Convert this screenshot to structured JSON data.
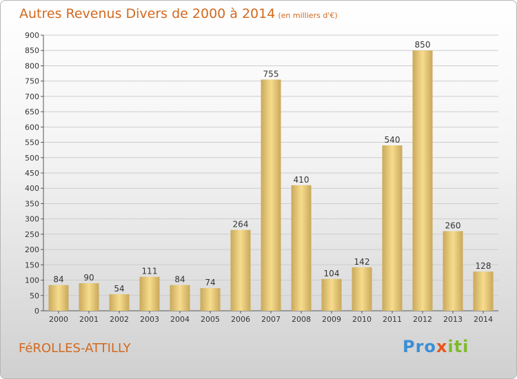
{
  "title": "Autres Revenus Divers de 2000 à 2014",
  "subtitle": "(en milliers d'€)",
  "location": "FéROLLES-ATTILLY",
  "logo": {
    "p1": "Pro",
    "p2": "x",
    "p3": "iti"
  },
  "colors": {
    "bar_light": "#f7dc8e",
    "bar_dark": "#c9a85a",
    "title": "#d2691e",
    "grid": "#cccccc"
  },
  "chart_data": {
    "type": "bar",
    "title": "Autres Revenus Divers de 2000 à 2014",
    "subtitle": "(en milliers d'€)",
    "categories": [
      "2000",
      "2001",
      "2002",
      "2003",
      "2004",
      "2005",
      "2006",
      "2007",
      "2008",
      "2009",
      "2010",
      "2011",
      "2012",
      "2013",
      "2014"
    ],
    "values": [
      84,
      90,
      54,
      111,
      84,
      74,
      264,
      755,
      410,
      104,
      142,
      540,
      850,
      260,
      128
    ],
    "ylim": [
      0,
      900
    ],
    "yticks": [
      0,
      50,
      100,
      150,
      200,
      250,
      300,
      350,
      400,
      450,
      500,
      550,
      600,
      650,
      700,
      750,
      800,
      850,
      900
    ],
    "grid": true
  }
}
